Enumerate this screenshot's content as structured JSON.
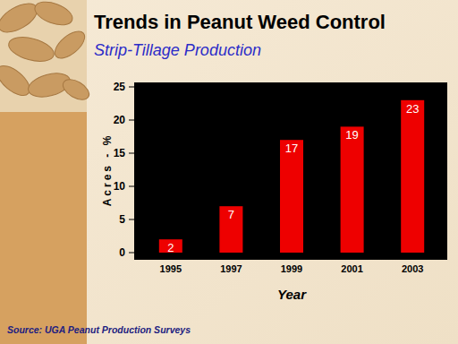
{
  "chart_data": {
    "type": "bar",
    "title": "Trends in Peanut Weed Control",
    "subtitle": "Strip-Tillage Production",
    "x_label": "Year",
    "y_label": "Acres - %",
    "source": "Source: UGA Peanut Production Surveys",
    "categories": [
      "1995",
      "1997",
      "1999",
      "2001",
      "2003"
    ],
    "values": [
      2,
      7,
      17,
      19,
      23
    ],
    "color": "#ee0000",
    "ylim": [
      0,
      25
    ],
    "yticks": [
      0,
      5,
      10,
      15,
      20,
      25
    ],
    "grid": false,
    "data_labels": true
  }
}
